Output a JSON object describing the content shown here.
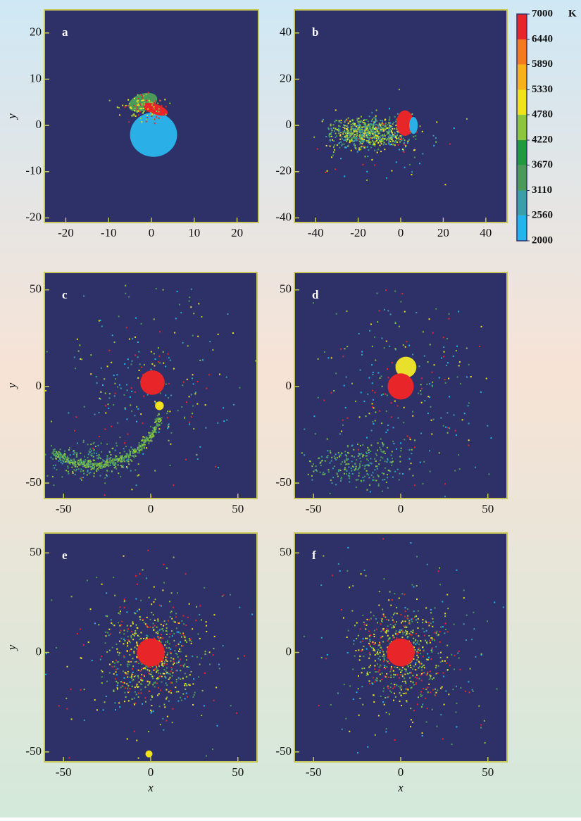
{
  "chart_data": [
    {
      "type": "scatter",
      "label": "a",
      "xlim": [
        -25,
        25
      ],
      "ylim": [
        -21,
        25
      ],
      "xticks": [
        -20,
        -10,
        0,
        10,
        20
      ],
      "yticks": [
        -20,
        -10,
        0,
        10,
        20
      ],
      "ylabel": "y"
    },
    {
      "type": "scatter",
      "label": "b",
      "xlim": [
        -50,
        50
      ],
      "ylim": [
        -42,
        50
      ],
      "xticks": [
        -40,
        -20,
        0,
        20,
        40
      ],
      "yticks": [
        -40,
        -20,
        0,
        20,
        40
      ]
    },
    {
      "type": "scatter",
      "label": "c",
      "xlim": [
        -61,
        61
      ],
      "ylim": [
        -58,
        59
      ],
      "xticks": [
        -50,
        0,
        50
      ],
      "yticks": [
        -50,
        0,
        50
      ],
      "ylabel": "y"
    },
    {
      "type": "scatter",
      "label": "d",
      "xlim": [
        -61,
        61
      ],
      "ylim": [
        -58,
        59
      ],
      "xticks": [
        -50,
        0,
        50
      ],
      "yticks": [
        -50,
        0,
        50
      ]
    },
    {
      "type": "scatter",
      "label": "e",
      "xlim": [
        -61,
        61
      ],
      "ylim": [
        -55,
        60
      ],
      "xticks": [
        -50,
        0,
        50
      ],
      "yticks": [
        -50,
        0,
        50
      ],
      "ylabel": "y",
      "xlabel": "x"
    },
    {
      "type": "scatter",
      "label": "f",
      "xlim": [
        -61,
        61
      ],
      "ylim": [
        -55,
        60
      ],
      "xticks": [
        -50,
        0,
        50
      ],
      "yticks": [
        -50,
        0,
        50
      ],
      "xlabel": "x"
    }
  ],
  "colorbar": {
    "ticks": [
      2000,
      2560,
      3110,
      3670,
      4220,
      4780,
      5330,
      5890,
      6440,
      7000
    ],
    "unit": "K",
    "colors": [
      "#22b4ec",
      "#3aa0a8",
      "#4a9a5a",
      "#1f9a3e",
      "#8cc63f",
      "#f2e21a",
      "#f7b21b",
      "#f47a20",
      "#e8262a"
    ]
  }
}
